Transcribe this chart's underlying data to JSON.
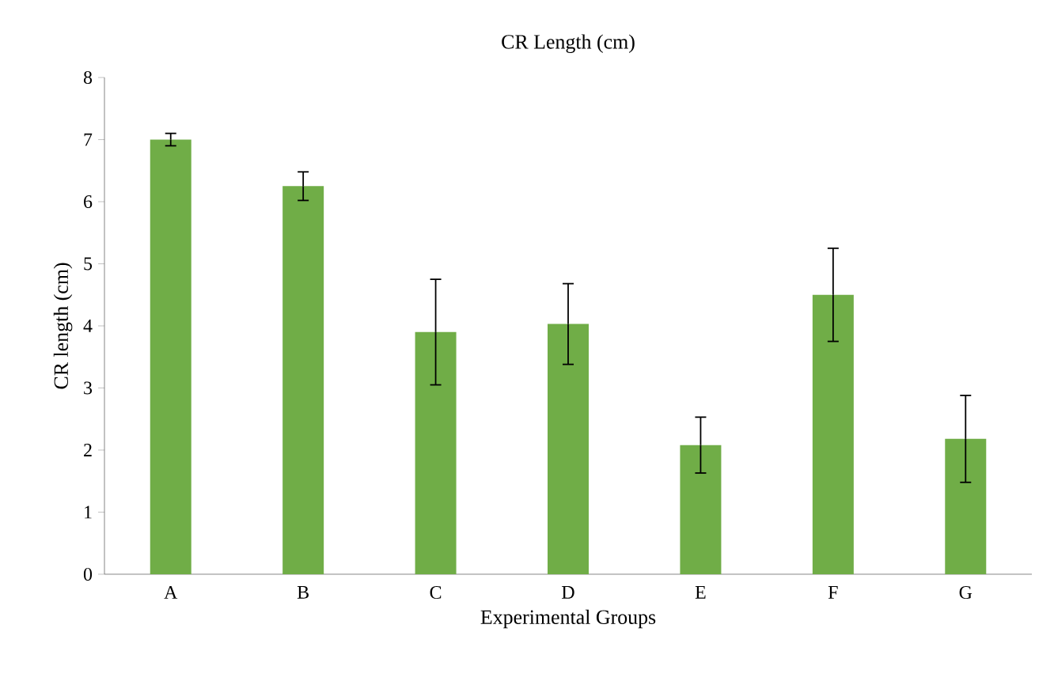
{
  "chart_data": {
    "type": "bar",
    "title": "CR Length (cm)",
    "xlabel": "Experimental Groups",
    "ylabel": "CR length (cm)",
    "categories": [
      "A",
      "B",
      "C",
      "D",
      "E",
      "F",
      "G"
    ],
    "values": [
      7.0,
      6.25,
      3.9,
      4.03,
      2.08,
      4.5,
      2.18
    ],
    "errors": [
      0.1,
      0.23,
      0.85,
      0.65,
      0.45,
      0.75,
      0.7
    ],
    "color": "#70ad47",
    "ylim": [
      0,
      8
    ],
    "yticks": [
      0,
      1,
      2,
      3,
      4,
      5,
      6,
      7,
      8
    ]
  }
}
